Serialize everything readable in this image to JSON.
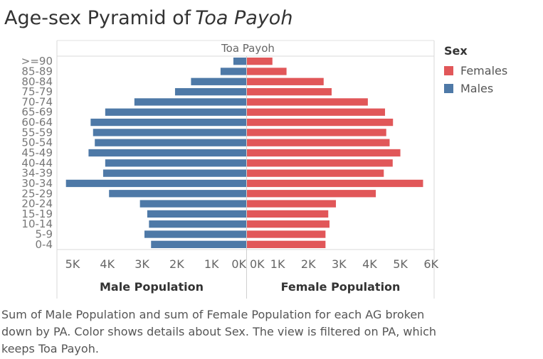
{
  "header": {
    "title_prefix": "Age-sex Pyramid of",
    "title_place": "Toa Payoh"
  },
  "legend": {
    "title": "Sex",
    "items": [
      {
        "label": "Females",
        "color": "#e15759"
      },
      {
        "label": "Males",
        "color": "#4e79a7"
      }
    ]
  },
  "caption": "Sum of Male Population and sum of Female Population for each AG broken down by PA.  Color shows details about Sex. The view is filtered on PA, which keeps Toa Payoh.",
  "chart_data": {
    "type": "bar",
    "title": "Toa Payoh",
    "categories": [
      ">=90",
      "85-89",
      "80-84",
      "75-79",
      "70-74",
      "65-69",
      "60-64",
      "55-59",
      "50-54",
      "45-49",
      "40-44",
      "34-39",
      "30-34",
      "25-29",
      "20-24",
      "15-19",
      "10-14",
      "5-9",
      "0-4"
    ],
    "series": [
      {
        "name": "Males",
        "color": "#4e79a7",
        "values": [
          370,
          740,
          1590,
          2050,
          3220,
          4060,
          4480,
          4410,
          4360,
          4540,
          4060,
          4120,
          5190,
          3950,
          3060,
          2850,
          2800,
          2930,
          2740
        ]
      },
      {
        "name": "Females",
        "color": "#e15759",
        "values": [
          830,
          1290,
          2500,
          2760,
          3940,
          4500,
          4760,
          4540,
          4650,
          5000,
          4750,
          4460,
          5740,
          4200,
          2900,
          2650,
          2690,
          2560,
          2560
        ]
      }
    ],
    "male_axis": {
      "label": "Male Population",
      "ticks": [
        "5K",
        "4K",
        "3K",
        "2K",
        "1K",
        "0K"
      ],
      "values": [
        5000,
        4000,
        3000,
        2000,
        1000,
        0
      ],
      "xlim": [
        5450,
        0
      ]
    },
    "female_axis": {
      "label": "Female Population",
      "ticks": [
        "0K",
        "1K",
        "2K",
        "3K",
        "4K",
        "5K",
        "6K"
      ],
      "values": [
        0,
        1000,
        2000,
        3000,
        4000,
        5000,
        6000
      ],
      "xlim": [
        0,
        6100
      ]
    },
    "grid": false
  }
}
